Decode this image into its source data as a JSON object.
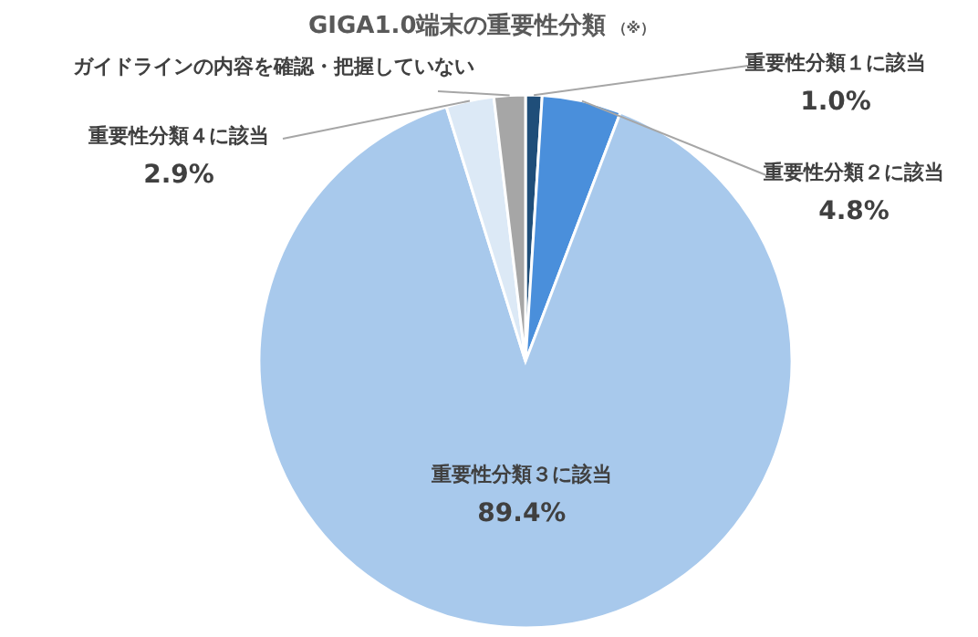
{
  "chart_data": {
    "type": "pie",
    "title": "GIGA1.0端末の重要性分類",
    "subtitle": "（※）",
    "categories": [
      "重要性分類１に該当",
      "重要性分類２に該当",
      "重要性分類３に該当",
      "重要性分類４に該当",
      "ガイドラインの内容を確認・把握していない"
    ],
    "values": [
      1.0,
      4.8,
      89.4,
      2.9,
      1.9
    ],
    "value_labels": [
      "1.0%",
      "4.8%",
      "89.4%",
      "2.9%",
      null
    ],
    "colors": [
      "#1f4e79",
      "#4a8fdb",
      "#a8c9ec",
      "#dce9f6",
      "#a6a6a6"
    ]
  }
}
